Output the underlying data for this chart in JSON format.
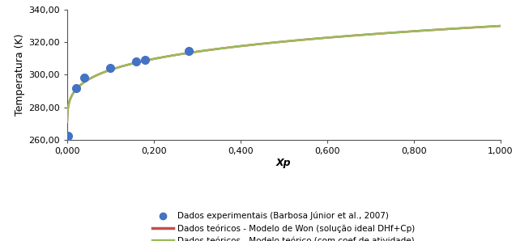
{
  "title": "",
  "xlabel": "Xp",
  "ylabel": "Temperatura (K)",
  "xlim": [
    0.0,
    1.0
  ],
  "ylim": [
    260.0,
    340.0
  ],
  "xticks": [
    0.0,
    0.2,
    0.4,
    0.6,
    0.8,
    1.0
  ],
  "xtick_labels": [
    "0,000",
    "0,200",
    "0,400",
    "0,600",
    "0,800",
    "1,000"
  ],
  "yticks": [
    260.0,
    280.0,
    300.0,
    320.0,
    340.0
  ],
  "ytick_labels": [
    "260,00",
    "280,00",
    "300,00",
    "320,00",
    "340,00"
  ],
  "exp_x": [
    0.002,
    0.02,
    0.04,
    0.1,
    0.16,
    0.18,
    0.28
  ],
  "exp_y": [
    262.5,
    291.5,
    298.0,
    304.2,
    308.2,
    309.2,
    314.5
  ],
  "exp_color": "#4472C4",
  "exp_marker": "o",
  "exp_markersize": 7,
  "line1_color": "#C0504D",
  "line2_color": "#9BBB59",
  "line_width": 1.8,
  "curve_T0": 262.0,
  "curve_T1": 330.0,
  "curve_alpha": 0.22,
  "legend_labels": [
    "Dados experimentais (Barbosa Júnior et al., 2007)",
    "Dados teóricos - Modelo de Won (solução ideal DHf+Cp)",
    "Dados teóricos - Modelo teórico (com coef de atividade)"
  ],
  "background_color": "#ffffff",
  "plot_bg_color": "#ffffff"
}
